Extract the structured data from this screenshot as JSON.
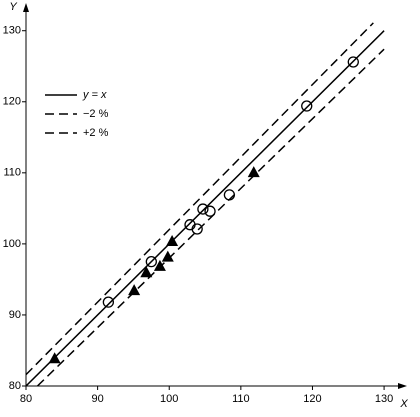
{
  "chart_data": {
    "type": "scatter",
    "x_label": "X",
    "y_label": "Y",
    "xlim": [
      80,
      133.2
    ],
    "ylim": [
      80,
      133.9
    ],
    "xticks": [
      80,
      90,
      100,
      110,
      120,
      130
    ],
    "yticks": [
      80,
      90,
      100,
      110,
      120,
      130
    ],
    "grid": false,
    "legend": "upper left",
    "series": [
      {
        "name": "y = x",
        "type": "line",
        "dash": "solid",
        "color": "#000000",
        "x": [
          80,
          130
        ],
        "values": [
          80,
          130
        ]
      },
      {
        "name": "−2 %",
        "type": "line",
        "dash": "dashed",
        "color": "#000000",
        "x": [
          81.6,
          130
        ],
        "values": [
          80,
          127.4
        ]
      },
      {
        "name": "+2 %",
        "type": "line",
        "dash": "dashed",
        "color": "#000000",
        "x": [
          80,
          128.5
        ],
        "values": [
          81.6,
          131.1
        ]
      },
      {
        "type": "scatter",
        "marker": "circle",
        "color": "#000000",
        "x": [
          91.5,
          97.5,
          102.9,
          103.9,
          104.7,
          105.7,
          108.4,
          119.2,
          125.7
        ],
        "values": [
          91.8,
          97.5,
          102.7,
          102.1,
          104.9,
          104.6,
          106.9,
          119.4,
          125.6
        ]
      },
      {
        "type": "scatter",
        "marker": "triangle",
        "color": "#000000",
        "x": [
          84,
          95.1,
          96.8,
          98.7,
          99.8,
          100.4,
          111.8
        ],
        "values": [
          83.9,
          93.5,
          96,
          96.9,
          98.2,
          100.4,
          110.1
        ]
      }
    ]
  }
}
